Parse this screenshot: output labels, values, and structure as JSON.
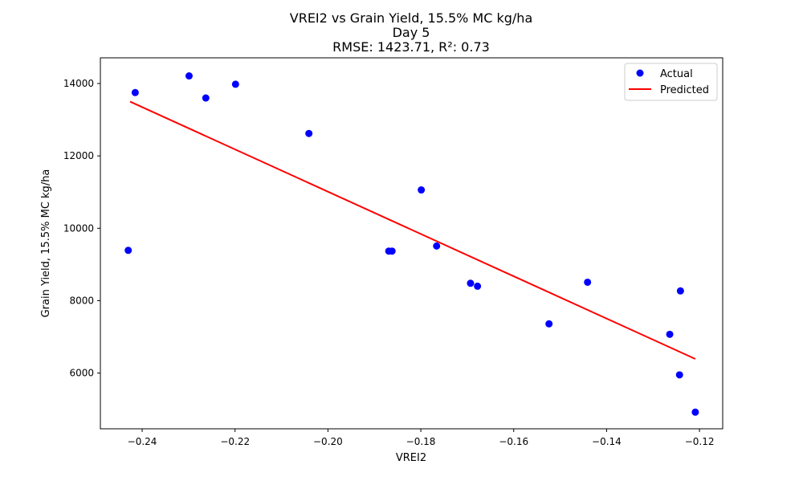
{
  "chart_data": {
    "type": "scatter",
    "title_lines": [
      "VREI2 vs Grain Yield, 15.5% MC kg/ha",
      "Day 5",
      "RMSE: 1423.71, R²: 0.73"
    ],
    "xlabel": "VREI2",
    "ylabel": "Grain Yield, 15.5% MC kg/ha",
    "xlim": [
      -0.249,
      -0.115
    ],
    "ylim": [
      4460,
      14710
    ],
    "xticks": [
      -0.24,
      -0.22,
      -0.2,
      -0.18,
      -0.16,
      -0.14,
      -0.12
    ],
    "xtick_labels": [
      "−0.24",
      "−0.22",
      "−0.20",
      "−0.18",
      "−0.16",
      "−0.14",
      "−0.12"
    ],
    "yticks": [
      6000,
      8000,
      10000,
      12000,
      14000
    ],
    "ytick_labels": [
      "6000",
      "8000",
      "10000",
      "12000",
      "14000"
    ],
    "grid": false,
    "legend_position": "top-right",
    "series": [
      {
        "name": "Actual",
        "kind": "scatter",
        "color": "#0000ff",
        "points": [
          {
            "x": -0.243,
            "y": 9390
          },
          {
            "x": -0.2415,
            "y": 13750
          },
          {
            "x": -0.2299,
            "y": 14210
          },
          {
            "x": -0.2263,
            "y": 13600
          },
          {
            "x": -0.2199,
            "y": 13980
          },
          {
            "x": -0.2041,
            "y": 12620
          },
          {
            "x": -0.1869,
            "y": 9370
          },
          {
            "x": -0.1862,
            "y": 9370
          },
          {
            "x": -0.1799,
            "y": 11060
          },
          {
            "x": -0.1766,
            "y": 9510
          },
          {
            "x": -0.1693,
            "y": 8480
          },
          {
            "x": -0.1678,
            "y": 8400
          },
          {
            "x": -0.1524,
            "y": 7360
          },
          {
            "x": -0.1441,
            "y": 8510
          },
          {
            "x": -0.1264,
            "y": 7070
          },
          {
            "x": -0.1243,
            "y": 5950
          },
          {
            "x": -0.1241,
            "y": 8270
          },
          {
            "x": -0.1209,
            "y": 4920
          }
        ]
      },
      {
        "name": "Predicted",
        "kind": "line",
        "color": "#ff0000",
        "points": [
          {
            "x": -0.2426,
            "y": 13500
          },
          {
            "x": -0.1209,
            "y": 6390
          }
        ]
      }
    ]
  }
}
